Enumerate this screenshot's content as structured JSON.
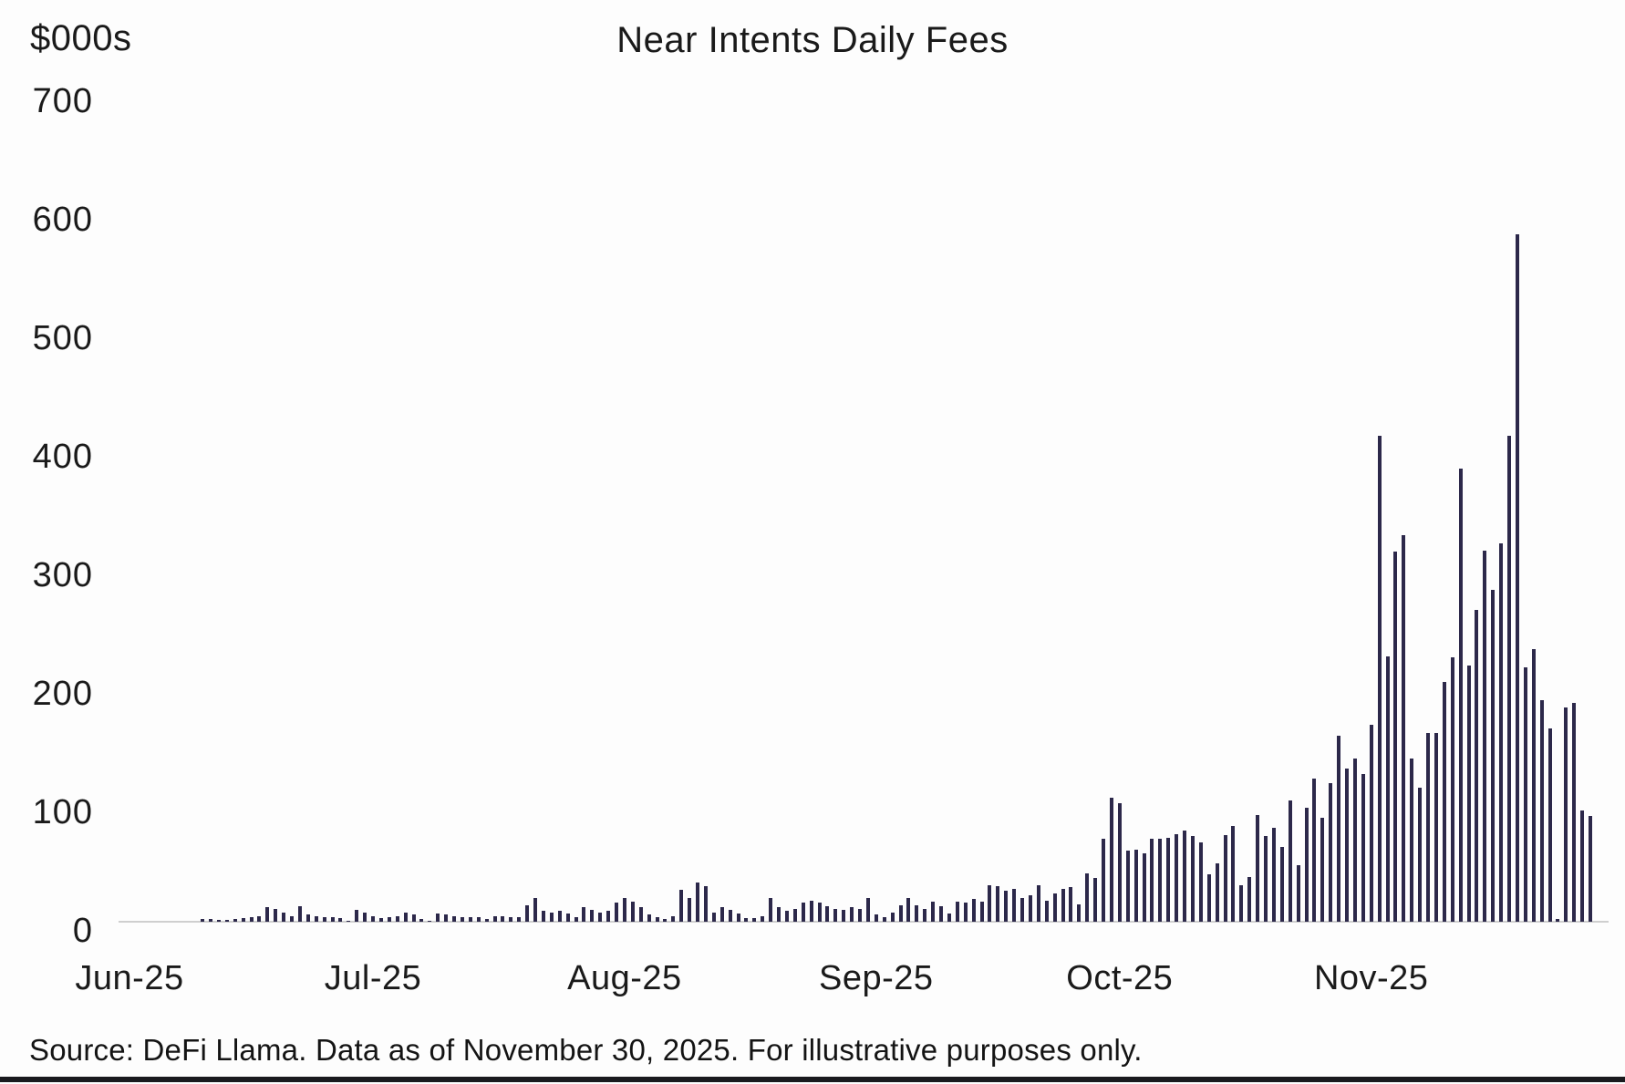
{
  "header": {
    "unit_label": "$000s"
  },
  "footer": {
    "source": "Source: DeFi Llama. Data as of November 30, 2025. For illustrative purposes only."
  },
  "chart_data": {
    "type": "bar",
    "title": "Near Intents Daily Fees",
    "ylabel": "$000s",
    "xlabel": "",
    "ylim": [
      0,
      700
    ],
    "yticks": [
      0,
      100,
      200,
      300,
      400,
      500,
      600,
      700
    ],
    "grid": false,
    "legend": "none",
    "bar_color": "#2c284a",
    "axis_color": "#cfcfcf",
    "x_unit": "day",
    "x_range": "Jun 1, 2025 to Nov 30, 2025",
    "xticks": [
      {
        "label": "Jun-25",
        "index": 0
      },
      {
        "label": "Jul-25",
        "index": 30
      },
      {
        "label": "Aug-25",
        "index": 61
      },
      {
        "label": "Sep-25",
        "index": 92
      },
      {
        "label": "Oct-25",
        "index": 122
      },
      {
        "label": "Nov-25",
        "index": 153
      }
    ],
    "month_start_indices": [
      0,
      30,
      61,
      92,
      122,
      153
    ],
    "values": [
      0,
      0,
      0,
      0,
      0,
      0,
      0,
      0,
      0,
      2,
      2,
      1.5,
      1.5,
      2,
      3,
      4,
      5,
      12,
      11,
      8,
      5,
      13,
      6,
      5,
      4,
      3.5,
      3,
      1,
      10,
      8,
      5,
      3,
      4,
      5,
      8,
      6,
      2,
      1,
      7,
      6,
      5,
      4,
      4,
      4,
      2,
      5,
      5,
      4,
      4,
      14,
      20,
      9,
      8,
      9,
      7,
      4,
      12,
      10,
      8,
      9,
      16,
      20,
      17,
      12,
      6,
      4,
      2,
      5,
      27,
      20,
      33,
      30,
      8,
      12,
      10,
      7,
      3,
      3,
      5,
      20,
      12,
      9,
      11,
      16,
      18,
      16,
      13,
      11,
      10,
      12,
      11,
      20,
      6,
      4,
      8,
      14,
      20,
      14,
      11,
      17,
      13,
      7,
      17,
      16,
      19,
      17,
      31,
      30,
      26,
      28,
      20,
      22,
      31,
      18,
      24,
      28,
      29,
      15,
      41,
      37,
      70,
      105,
      100,
      60,
      61,
      58,
      70,
      70,
      71,
      74,
      77,
      72,
      67,
      40,
      49,
      73,
      81,
      31,
      38,
      90,
      72,
      79,
      63,
      102,
      48,
      96,
      121,
      88,
      117,
      157,
      129,
      138,
      125,
      166,
      410,
      224,
      312,
      326,
      138,
      113,
      159,
      159,
      202,
      223,
      382,
      216,
      263,
      313,
      280,
      319,
      410,
      580,
      215,
      230,
      187,
      163,
      2,
      181,
      185,
      94,
      89
    ]
  }
}
